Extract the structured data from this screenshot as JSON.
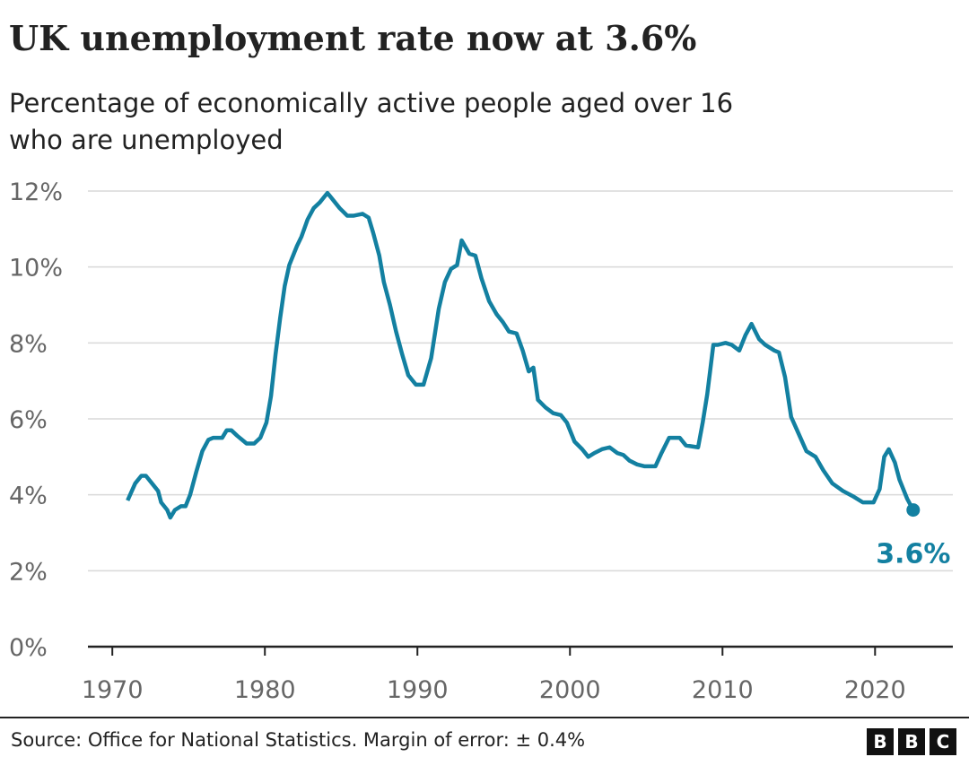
{
  "chart_data": {
    "type": "line",
    "title": "UK unemployment rate now at 3.6%",
    "subtitle": [
      "Percentage of economically active people aged over 16",
      "who are unemployed"
    ],
    "source": "Source: Office for National Statistics. Margin of error: ± 0.4%",
    "brand": [
      "B",
      "B",
      "C"
    ],
    "annotation": "3.6%",
    "color": "#1380a1",
    "grid": true,
    "xlim": [
      1968.4,
      2025.1
    ],
    "xticks": [
      1970,
      1980,
      1990,
      2000,
      2010,
      2020
    ],
    "ylim": [
      0,
      12
    ],
    "yticks": [
      {
        "value": 0,
        "label": "0%"
      },
      {
        "value": 2,
        "label": "2%"
      },
      {
        "value": 4,
        "label": "4%"
      },
      {
        "value": 6,
        "label": "6%"
      },
      {
        "value": 8,
        "label": "8%"
      },
      {
        "value": 10,
        "label": "10%"
      },
      {
        "value": 12,
        "label": "12%"
      }
    ],
    "x": [
      1971.0,
      1971.5,
      1971.9,
      1972.2,
      1972.6,
      1973.0,
      1973.2,
      1973.6,
      1973.8,
      1974.1,
      1974.5,
      1974.8,
      1975.1,
      1975.5,
      1975.9,
      1976.3,
      1976.6,
      1977.2,
      1977.5,
      1977.8,
      1978.2,
      1978.5,
      1978.8,
      1979.3,
      1979.7,
      1980.1,
      1980.4,
      1980.7,
      1981.0,
      1981.3,
      1981.6,
      1982.1,
      1982.4,
      1982.8,
      1983.2,
      1983.6,
      1984.1,
      1984.4,
      1984.9,
      1985.4,
      1985.8,
      1986.4,
      1986.8,
      1987.1,
      1987.5,
      1987.8,
      1988.2,
      1988.6,
      1989.0,
      1989.4,
      1989.9,
      1990.4,
      1990.9,
      1991.4,
      1991.8,
      1992.2,
      1992.6,
      1992.9,
      1993.4,
      1993.8,
      1994.2,
      1994.7,
      1995.2,
      1995.6,
      1996.0,
      1996.5,
      1996.9,
      1997.3,
      1997.6,
      1997.9,
      1998.4,
      1998.9,
      1999.4,
      1999.8,
      2000.3,
      2000.8,
      2001.2,
      2001.6,
      2002.1,
      2002.6,
      2003.1,
      2003.5,
      2003.9,
      2004.4,
      2004.9,
      2005.6,
      2006.0,
      2006.5,
      2007.2,
      2007.6,
      2008.4,
      2008.7,
      2009.0,
      2009.4,
      2009.7,
      2010.2,
      2010.6,
      2011.1,
      2011.5,
      2011.9,
      2012.4,
      2012.8,
      2013.4,
      2013.7,
      2014.1,
      2014.5,
      2015.0,
      2015.5,
      2016.1,
      2016.6,
      2017.2,
      2017.9,
      2018.6,
      2019.2,
      2019.9,
      2020.3,
      2020.6,
      2020.9,
      2021.3,
      2021.6,
      2022.1,
      2022.5
    ],
    "values": [
      3.85,
      4.3,
      4.5,
      4.5,
      4.3,
      4.1,
      3.8,
      3.6,
      3.4,
      3.6,
      3.7,
      3.7,
      4.0,
      4.6,
      5.15,
      5.45,
      5.5,
      5.5,
      5.7,
      5.7,
      5.55,
      5.45,
      5.35,
      5.35,
      5.5,
      5.9,
      6.6,
      7.7,
      8.65,
      9.5,
      10.05,
      10.55,
      10.8,
      11.25,
      11.55,
      11.7,
      11.95,
      11.8,
      11.55,
      11.35,
      11.35,
      11.4,
      11.3,
      10.9,
      10.3,
      9.6,
      9.0,
      8.3,
      7.7,
      7.15,
      6.9,
      6.9,
      7.6,
      8.9,
      9.6,
      9.95,
      10.05,
      10.7,
      10.35,
      10.3,
      9.7,
      9.1,
      8.75,
      8.55,
      8.3,
      8.25,
      7.8,
      7.25,
      7.35,
      6.5,
      6.3,
      6.15,
      6.1,
      5.9,
      5.4,
      5.2,
      5.0,
      5.1,
      5.2,
      5.25,
      5.1,
      5.05,
      4.9,
      4.8,
      4.75,
      4.75,
      5.1,
      5.5,
      5.5,
      5.3,
      5.25,
      5.9,
      6.65,
      7.95,
      7.95,
      8.0,
      7.95,
      7.8,
      8.2,
      8.5,
      8.1,
      7.95,
      7.8,
      7.75,
      7.1,
      6.05,
      5.6,
      5.15,
      5.0,
      4.65,
      4.3,
      4.1,
      3.95,
      3.8,
      3.8,
      4.15,
      5.0,
      5.2,
      4.85,
      4.4,
      3.9,
      3.6
    ]
  }
}
